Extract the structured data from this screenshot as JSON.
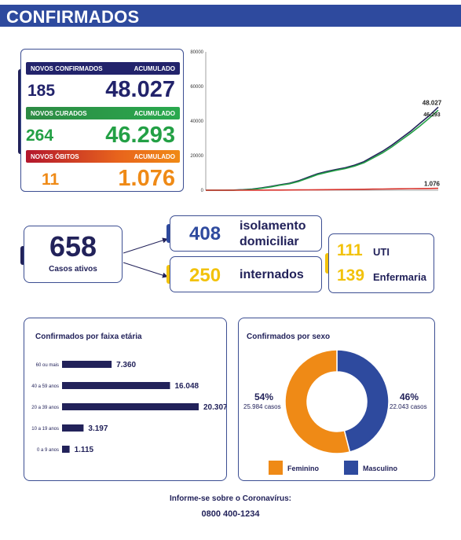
{
  "header": {
    "title": "CONFIRMADOS"
  },
  "stats": {
    "confirmed": {
      "label": "NOVOS CONFIRMADOS",
      "acc_label": "ACUMULADO",
      "new": "185",
      "acc": "48.027"
    },
    "recovered": {
      "label": "NOVOS CURADOS",
      "acc_label": "ACUMULADO",
      "new": "264",
      "acc": "46.293"
    },
    "deaths": {
      "label": "NOVOS ÓBITOS",
      "acc_label": "ACUMULADO",
      "new": "11",
      "acc": "1.076"
    }
  },
  "active": {
    "value": "658",
    "label": "Casos ativos"
  },
  "isolation": {
    "value": "408",
    "label_line1": "isolamento",
    "label_line2": "domiciliar"
  },
  "hospitalized": {
    "value": "250",
    "label": "internados"
  },
  "icu": {
    "value": "111",
    "label": "UTI"
  },
  "ward": {
    "value": "139",
    "label": "Enfermaria"
  },
  "colors": {
    "navy": "#22225a",
    "blue": "#2e4a9e",
    "green": "#23a045",
    "red": "#d9352e",
    "orange": "#ef8a16",
    "yellow": "#f2c20b",
    "male": "#2e4a9e",
    "female": "#ef8a16"
  },
  "footer": {
    "line1": "Informe-se sobre o Coronavírus:",
    "line2": "0800 400-1234"
  },
  "chart_data": [
    {
      "type": "line",
      "title": "",
      "xlabel": "",
      "ylabel": "",
      "ylim": [
        0,
        80000
      ],
      "yticks": [
        "0",
        "20000",
        "40000",
        "60000",
        "80000"
      ],
      "grid": false,
      "series": [
        {
          "color": "#22225a",
          "values": [
            0,
            0,
            0,
            100,
            300,
            700,
            1300,
            2200,
            3200,
            4000,
            5500,
            7500,
            9500,
            10800,
            12000,
            13000,
            14500,
            16500,
            19500,
            22500,
            26000,
            30000,
            34000,
            38500,
            43000,
            48027
          ],
          "end_label": "48.027"
        },
        {
          "color": "#23a045",
          "values": [
            0,
            0,
            0,
            50,
            200,
            500,
            1100,
            1900,
            2900,
            3700,
            5100,
            7000,
            9000,
            10300,
            11500,
            12500,
            13900,
            15800,
            18700,
            21600,
            25000,
            28900,
            32800,
            37000,
            41500,
            46293
          ],
          "end_label": "46.293"
        },
        {
          "color": "#d9352e",
          "values": [
            0,
            0,
            0,
            5,
            15,
            30,
            50,
            80,
            110,
            140,
            180,
            230,
            280,
            330,
            380,
            430,
            490,
            550,
            620,
            690,
            760,
            830,
            900,
            960,
            1020,
            1076
          ],
          "end_label": "1.076"
        }
      ]
    },
    {
      "type": "bar",
      "orientation": "horizontal",
      "title": "Confirmados por faixa etária",
      "categories": [
        "60 ou mais",
        "40 a 59 anos",
        "20 a 39 anos",
        "10 a 19 anos",
        "0 a 9 anos"
      ],
      "values": [
        7360,
        16048,
        20307,
        3197,
        1115
      ],
      "value_labels": [
        "7.360",
        "16.048",
        "20.307",
        "3.197",
        "1.115"
      ],
      "color": "#22225a"
    },
    {
      "type": "pie",
      "title": "Confirmados por sexo",
      "donut": true,
      "slices": [
        {
          "label": "Feminino",
          "percent": 54,
          "percent_label": "54%",
          "count_label": "25.984 casos",
          "color": "#ef8a16"
        },
        {
          "label": "Masculino",
          "percent": 46,
          "percent_label": "46%",
          "count_label": "22.043 casos",
          "color": "#2e4a9e"
        }
      ]
    }
  ]
}
